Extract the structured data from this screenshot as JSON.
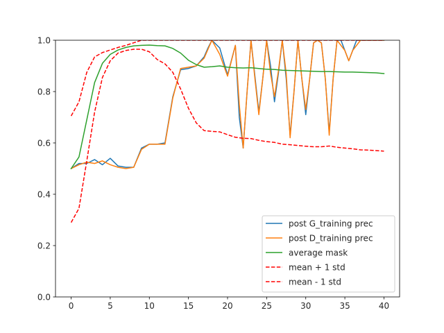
{
  "chart_data": {
    "type": "line",
    "title": "",
    "xlabel": "",
    "ylabel": "",
    "xlim": [
      -2,
      42
    ],
    "ylim": [
      0.0,
      1.0
    ],
    "xticks": [
      0,
      5,
      10,
      15,
      20,
      25,
      30,
      35,
      40
    ],
    "yticks": [
      0.0,
      0.2,
      0.4,
      0.6,
      0.8,
      1.0
    ],
    "xtick_labels": [
      "0",
      "5",
      "10",
      "15",
      "20",
      "25",
      "30",
      "35",
      "40"
    ],
    "ytick_labels": [
      "0.0",
      "0.2",
      "0.4",
      "0.6",
      "0.8",
      "1.0"
    ],
    "grid": false,
    "legend_position": "lower-right",
    "series": [
      {
        "name": "post G_training prec",
        "color": "#1f77b4",
        "style": "solid",
        "x": [
          0,
          1,
          2,
          3,
          4,
          5,
          6,
          7,
          8,
          9,
          10,
          11,
          12,
          13,
          14,
          15,
          16,
          17,
          17.5,
          18,
          19,
          20,
          21,
          21.5,
          22,
          22.5,
          23,
          23.5,
          24,
          24.5,
          25,
          25.5,
          26,
          26.5,
          27,
          27.5,
          28,
          28.5,
          29,
          29.5,
          30,
          30.5,
          31,
          31.5,
          32,
          32.5,
          33,
          33.5,
          34,
          34.5,
          35,
          35.5,
          36,
          36.5,
          37,
          37.5,
          38,
          39,
          40
        ],
        "y": [
          0.5,
          0.52,
          0.52,
          0.535,
          0.515,
          0.54,
          0.51,
          0.505,
          0.505,
          0.58,
          0.595,
          0.595,
          0.6,
          0.78,
          0.885,
          0.89,
          0.9,
          0.935,
          0.97,
          1.0,
          0.97,
          0.865,
          0.98,
          0.7,
          0.58,
          0.8,
          1.0,
          0.86,
          0.72,
          0.85,
          1.0,
          0.9,
          0.76,
          0.87,
          1.0,
          0.85,
          0.63,
          0.8,
          1.0,
          0.85,
          0.71,
          0.85,
          0.99,
          1.0,
          0.99,
          0.85,
          0.64,
          0.85,
          1.0,
          1.0,
          0.96,
          0.92,
          0.96,
          1.0,
          1.0,
          1.0,
          1.0,
          1.0,
          1.0
        ]
      },
      {
        "name": "post D_training prec",
        "color": "#ff7f0e",
        "style": "solid",
        "x": [
          0,
          1,
          2,
          3,
          4,
          5,
          6,
          7,
          8,
          9,
          10,
          11,
          12,
          13,
          14,
          15,
          16,
          17,
          18,
          19,
          20,
          21,
          21.5,
          22,
          22.5,
          23,
          23.5,
          24,
          24.5,
          25,
          25.5,
          26,
          26.5,
          27,
          27.5,
          28,
          28.5,
          29,
          29.5,
          30,
          30.5,
          31,
          31.5,
          32,
          32.5,
          33,
          33.5,
          34,
          35,
          35.5,
          36,
          37,
          38,
          39,
          40
        ],
        "y": [
          0.5,
          0.515,
          0.525,
          0.52,
          0.53,
          0.515,
          0.505,
          0.5,
          0.505,
          0.575,
          0.595,
          0.595,
          0.595,
          0.775,
          0.89,
          0.895,
          0.9,
          0.93,
          1.0,
          0.945,
          0.86,
          0.98,
          0.75,
          0.58,
          0.8,
          1.0,
          0.85,
          0.71,
          0.85,
          1.0,
          0.87,
          0.78,
          0.88,
          1.0,
          0.87,
          0.62,
          0.8,
          1.0,
          0.85,
          0.73,
          0.85,
          0.99,
          1.0,
          0.99,
          0.85,
          0.63,
          0.85,
          1.0,
          0.96,
          0.92,
          0.96,
          1.0,
          1.0,
          1.0,
          1.0
        ]
      },
      {
        "name": "average mask",
        "color": "#2ca02c",
        "style": "solid",
        "x": [
          0,
          1,
          2,
          3,
          4,
          5,
          6,
          7,
          8,
          9,
          10,
          11,
          12,
          13,
          14,
          15,
          16,
          17,
          18,
          19,
          20,
          21,
          22,
          23,
          24,
          25,
          26,
          27,
          28,
          29,
          30,
          31,
          32,
          33,
          34,
          35,
          36,
          37,
          38,
          39,
          40
        ],
        "y": [
          0.5,
          0.545,
          0.69,
          0.835,
          0.91,
          0.945,
          0.962,
          0.972,
          0.978,
          0.98,
          0.981,
          0.979,
          0.978,
          0.968,
          0.95,
          0.922,
          0.905,
          0.895,
          0.897,
          0.9,
          0.895,
          0.893,
          0.892,
          0.893,
          0.89,
          0.887,
          0.886,
          0.883,
          0.882,
          0.881,
          0.88,
          0.879,
          0.878,
          0.878,
          0.877,
          0.876,
          0.876,
          0.875,
          0.874,
          0.873,
          0.87
        ]
      },
      {
        "name": "mean + 1 std",
        "color": "#ff0000",
        "style": "dashed",
        "x": [
          0,
          1,
          2,
          3,
          4,
          5,
          6,
          7,
          8,
          9,
          10,
          11,
          12,
          13,
          14,
          15,
          16,
          17,
          18,
          19,
          20,
          21,
          22,
          23,
          24,
          25,
          26,
          27,
          28,
          29,
          30,
          31,
          32,
          33,
          34,
          35,
          36,
          37,
          38,
          39,
          40
        ],
        "y": [
          0.705,
          0.76,
          0.875,
          0.935,
          0.952,
          0.962,
          0.972,
          0.98,
          0.99,
          1.0,
          1.0,
          1.0,
          1.0,
          1.0,
          1.0,
          1.0,
          1.0,
          1.0,
          1.0,
          1.0,
          1.0,
          1.0,
          1.0,
          1.0,
          1.0,
          1.0,
          1.0,
          1.0,
          1.0,
          1.0,
          1.0,
          1.0,
          1.0,
          1.0,
          1.0,
          1.0,
          1.0,
          1.0,
          1.0,
          1.0,
          1.0
        ]
      },
      {
        "name": "mean - 1 std",
        "color": "#ff0000",
        "style": "dashed",
        "x": [
          0,
          1,
          2,
          3,
          4,
          5,
          6,
          7,
          8,
          9,
          10,
          11,
          12,
          13,
          14,
          15,
          16,
          17,
          18,
          19,
          20,
          21,
          22,
          23,
          24,
          25,
          26,
          27,
          28,
          29,
          30,
          31,
          32,
          33,
          34,
          35,
          36,
          37,
          38,
          39,
          40
        ],
        "y": [
          0.29,
          0.345,
          0.53,
          0.72,
          0.855,
          0.92,
          0.95,
          0.96,
          0.965,
          0.965,
          0.955,
          0.925,
          0.908,
          0.875,
          0.81,
          0.735,
          0.678,
          0.648,
          0.645,
          0.643,
          0.632,
          0.622,
          0.618,
          0.617,
          0.61,
          0.605,
          0.602,
          0.595,
          0.593,
          0.59,
          0.587,
          0.585,
          0.585,
          0.588,
          0.583,
          0.58,
          0.577,
          0.573,
          0.572,
          0.57,
          0.568
        ]
      }
    ]
  }
}
